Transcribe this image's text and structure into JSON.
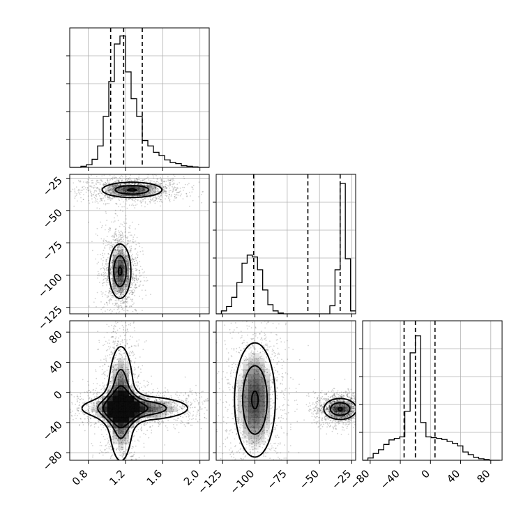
{
  "chart_data": [
    {
      "type": "histogram",
      "panel": "1d-param-1",
      "x_range": [
        0.6,
        2.1
      ],
      "x_ticks": [
        0.8,
        1.2,
        1.6,
        2.0
      ],
      "x_tick_labels": [
        "0.8",
        "1.2",
        "1.6",
        "2.0"
      ],
      "x_edges": [
        0.6,
        0.66,
        0.72,
        0.78,
        0.84,
        0.9,
        0.96,
        1.02,
        1.08,
        1.14,
        1.2,
        1.26,
        1.32,
        1.38,
        1.44,
        1.5,
        1.56,
        1.62,
        1.68,
        1.74,
        1.8,
        1.86,
        1.92,
        1.98,
        2.04,
        2.1
      ],
      "counts": [
        0,
        0,
        2,
        5,
        15,
        40,
        95,
        160,
        230,
        245,
        178,
        128,
        95,
        50,
        40,
        28,
        22,
        14,
        9,
        7,
        3,
        2,
        1,
        0,
        0
      ],
      "y_max": 260,
      "quantiles": [
        1.04,
        1.18,
        1.38
      ],
      "grid": true
    },
    {
      "type": "histogram",
      "panel": "1d-param-2",
      "x_range": [
        -130,
        -22
      ],
      "x_ticks": [
        -125,
        -100,
        -75,
        -50,
        -25
      ],
      "x_tick_labels": [
        "−125",
        "−100",
        "−75",
        "−50",
        "−25"
      ],
      "x_edges": [
        -130,
        -126,
        -122,
        -118,
        -114,
        -110,
        -106,
        -102,
        -98,
        -94,
        -90,
        -86,
        -82,
        -78,
        -74,
        -70,
        -66,
        -62,
        -58,
        -54,
        -50,
        -46,
        -42,
        -38,
        -34,
        -30,
        -26,
        -22
      ],
      "counts": [
        0,
        8,
        20,
        45,
        85,
        138,
        160,
        155,
        120,
        65,
        25,
        8,
        2,
        0,
        0,
        0,
        0,
        0,
        0,
        0,
        0,
        0,
        22,
        120,
        355,
        150,
        8
      ],
      "y_max": 380,
      "quantiles": [
        -101,
        -59,
        -34
      ],
      "grid": true
    },
    {
      "type": "histogram",
      "panel": "1d-param-3",
      "x_range": [
        -90,
        95
      ],
      "x_ticks": [
        -80,
        -40,
        0,
        40,
        80
      ],
      "x_tick_labels": [
        "−80",
        "−40",
        "0",
        "40",
        "80"
      ],
      "x_edges": [
        -90,
        -83,
        -76,
        -69,
        -62,
        -55,
        -48,
        -41,
        -34,
        -27,
        -20,
        -13,
        -6,
        1,
        8,
        15,
        22,
        29,
        36,
        43,
        50,
        57,
        64,
        71,
        78,
        85,
        92
      ],
      "counts": [
        0,
        6,
        18,
        28,
        42,
        54,
        58,
        62,
        130,
        285,
        330,
        100,
        62,
        60,
        58,
        55,
        50,
        45,
        38,
        22,
        15,
        8,
        4,
        2,
        0,
        0
      ],
      "y_max": 370,
      "quantiles": [
        -35,
        -20,
        6
      ],
      "grid": true
    },
    {
      "type": "heatmap",
      "panel": "2d-param-2-vs-param-1",
      "x_range": [
        0.6,
        2.1
      ],
      "y_range": [
        -130,
        -22
      ],
      "y_ticks": [
        -125,
        -100,
        -75,
        -50,
        -25
      ],
      "y_tick_labels": [
        "−125",
        "−100",
        "−75",
        "−50",
        "−25"
      ],
      "modes": [
        {
          "center": [
            1.27,
            -34
          ],
          "width": [
            0.55,
            10
          ],
          "note": "horizontal elongated cluster"
        },
        {
          "center": [
            1.14,
            -97
          ],
          "width": [
            0.2,
            36
          ],
          "note": "vertical oval cluster"
        }
      ],
      "grid": true
    },
    {
      "type": "heatmap",
      "panel": "2d-param-3-vs-param-1",
      "x_range": [
        0.6,
        2.1
      ],
      "y_range": [
        -90,
        95
      ],
      "y_ticks": [
        -80,
        -40,
        0,
        40,
        80
      ],
      "y_tick_labels": [
        "−80",
        "−40",
        "0",
        "40",
        "80"
      ],
      "modes": [
        {
          "center": [
            1.15,
            -15
          ],
          "width": [
            0.22,
            120
          ],
          "note": "vertical arm"
        },
        {
          "center": [
            1.3,
            -21
          ],
          "width": [
            0.9,
            25
          ],
          "note": "horizontal arm"
        }
      ],
      "grid": true
    },
    {
      "type": "heatmap",
      "panel": "2d-param-3-vs-param-2",
      "x_range": [
        -130,
        -22
      ],
      "y_range": [
        -90,
        95
      ],
      "modes": [
        {
          "center": [
            -100,
            -10
          ],
          "width": [
            25,
            120
          ],
          "note": "elongated vertical cluster"
        },
        {
          "center": [
            -34,
            -22
          ],
          "width": [
            20,
            22
          ],
          "note": "compact cluster"
        }
      ],
      "grid": true
    }
  ]
}
